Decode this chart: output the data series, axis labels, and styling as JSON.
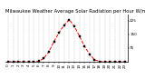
{
  "title": "Milwaukee Weather Average Solar Radiation per Hour W/m2 (Last 24 Hours)",
  "hours": [
    0,
    1,
    2,
    3,
    4,
    5,
    6,
    7,
    8,
    9,
    10,
    11,
    12,
    13,
    14,
    15,
    16,
    17,
    18,
    19,
    20,
    21,
    22,
    23
  ],
  "values": [
    0,
    0,
    0,
    0,
    0,
    0,
    2,
    18,
    55,
    110,
    160,
    200,
    230,
    195,
    140,
    85,
    40,
    10,
    1,
    0,
    0,
    0,
    0,
    0
  ],
  "line_color": "#ff0000",
  "line_style": "--",
  "marker": "s",
  "marker_size": 1.5,
  "marker_color": "#000000",
  "bg_color": "#ffffff",
  "grid_color": "#aaaaaa",
  "ylim": [
    0,
    260
  ],
  "yticks": [
    75,
    150,
    225
  ],
  "ylabel_fontsize": 3.0,
  "xlabel_fontsize": 3.0,
  "title_fontsize": 3.8,
  "linewidth": 0.7
}
